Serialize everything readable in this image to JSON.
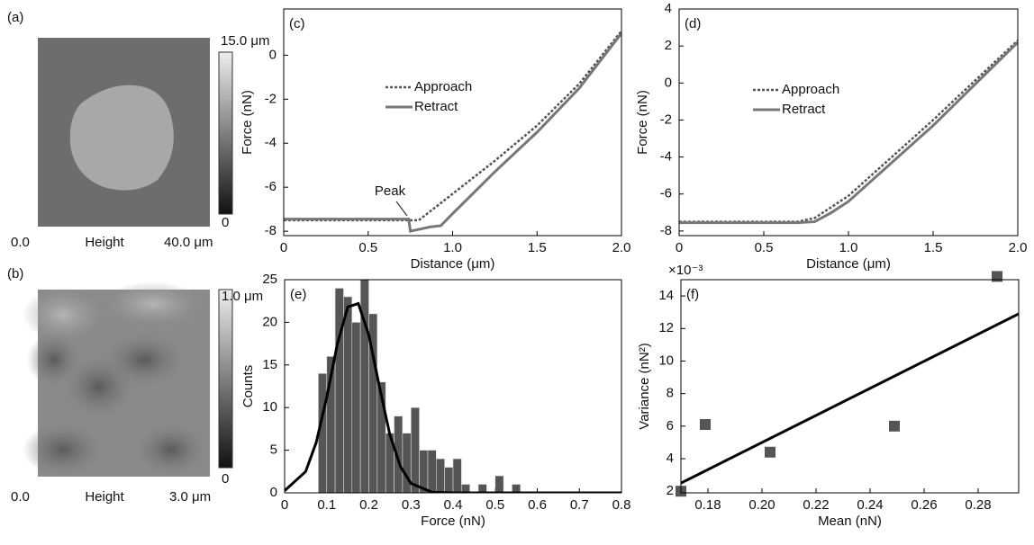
{
  "images": [
    {
      "label": "(a)",
      "colorbar_top": "15.0 μm",
      "colorbar_bottom": "0",
      "x_start": "0.0",
      "caption": "Height",
      "x_end": "40.0 μm"
    },
    {
      "label": "(b)",
      "colorbar_top": "1.0 μm",
      "colorbar_bottom": "0",
      "x_start": "0.0",
      "caption": "Height",
      "x_end": "3.0 μm"
    }
  ],
  "chart_data": [
    {
      "type": "line",
      "label": "(c)",
      "xlabel": "Distance (μm)",
      "ylabel": "Force (nN)",
      "annotation": "Peak",
      "xlim": [
        0,
        2
      ],
      "ylim": [
        -8.2,
        2.1
      ],
      "xticks": [
        0,
        0.5,
        {
          "value": 1,
          "label": "1.0"
        },
        1.5,
        {
          "value": 2,
          "label": "2.0"
        }
      ],
      "yticks": [
        -8,
        -6,
        -4,
        -2,
        0
      ],
      "series": [
        {
          "name": "Approach",
          "color": "#555555",
          "dash": true,
          "x": [
            0,
            0.8,
            1.0,
            1.25,
            1.5,
            1.75,
            2.0
          ],
          "values": [
            -7.5,
            -7.5,
            -6.3,
            -4.8,
            -3.2,
            -1.3,
            1.1
          ]
        },
        {
          "name": "Retract",
          "color": "#777777",
          "dash": false,
          "x": [
            0,
            0.74,
            0.75,
            0.87,
            0.93,
            1.0,
            1.25,
            1.5,
            1.75,
            2.0
          ],
          "values": [
            -7.45,
            -7.45,
            -8.0,
            -7.8,
            -7.75,
            -7.2,
            -5.3,
            -3.5,
            -1.5,
            1.0
          ]
        }
      ]
    },
    {
      "type": "line",
      "label": "(d)",
      "xlabel": "Distance (μm)",
      "ylabel": "Force (nN)",
      "xlim": [
        0,
        2
      ],
      "ylim": [
        -8.25,
        4
      ],
      "xticks": [
        0,
        0.5,
        {
          "value": 1,
          "label": "1.0"
        },
        1.5,
        {
          "value": 2,
          "label": "2.0"
        }
      ],
      "yticks": [
        -8,
        -6,
        -4,
        -2,
        0,
        2,
        4
      ],
      "series": [
        {
          "name": "Approach",
          "color": "#555555",
          "dash": true,
          "x": [
            0,
            0.7,
            0.8,
            1.0,
            1.5,
            2.0
          ],
          "values": [
            -7.5,
            -7.5,
            -7.3,
            -6.1,
            -2.0,
            2.3
          ]
        },
        {
          "name": "Retract",
          "color": "#777777",
          "dash": false,
          "x": [
            0,
            0.7,
            0.8,
            0.9,
            1.0,
            1.5,
            2.0
          ],
          "values": [
            -7.55,
            -7.55,
            -7.5,
            -7.0,
            -6.4,
            -2.3,
            2.2
          ]
        }
      ]
    },
    {
      "type": "histogram",
      "label": "(e)",
      "xlabel": "Force (nN)",
      "ylabel": "Counts",
      "color": "#555555",
      "xlim": [
        0,
        0.8
      ],
      "ylim": [
        0,
        25
      ],
      "xticks": [
        0,
        0.1,
        0.2,
        0.3,
        0.4,
        0.5,
        0.6,
        0.7,
        0.8
      ],
      "yticks": [
        0,
        5,
        10,
        15,
        20,
        25
      ],
      "bins": [
        0.08,
        0.1,
        0.12,
        0.14,
        0.16,
        0.18,
        0.2,
        0.22,
        0.24,
        0.26,
        0.28,
        0.3,
        0.32,
        0.34,
        0.36,
        0.38,
        0.4,
        0.42,
        0.44,
        0.46,
        0.48,
        0.5,
        0.52,
        0.54,
        0.56
      ],
      "values": [
        14,
        16,
        24,
        23,
        20,
        25,
        21,
        13,
        7,
        9,
        7,
        10,
        5,
        5,
        4,
        3,
        4,
        1,
        0,
        1,
        0,
        2,
        0,
        1
      ],
      "fit": {
        "color": "#000000",
        "x": [
          0,
          0.05,
          0.075,
          0.1,
          0.125,
          0.15,
          0.175,
          0.2,
          0.225,
          0.25,
          0.275,
          0.3,
          0.35,
          0.4,
          0.8
        ],
        "values": [
          0.25,
          2.5,
          5.9,
          11.2,
          17.4,
          21.8,
          22.2,
          18.5,
          12.5,
          6.8,
          3.1,
          1.1,
          0.08,
          0,
          0
        ]
      }
    },
    {
      "type": "scatter",
      "label": "(f)",
      "xlabel": "Mean (nN)",
      "ylabel": "Variance (nN²)",
      "y_scale_label": "×10⁻³",
      "color": "#555555",
      "xlim": [
        0.17,
        0.295
      ],
      "ylim": [
        1.9,
        15
      ],
      "xticks": [
        0.18,
        {
          "value": 0.2,
          "label": "0.20"
        },
        0.22,
        0.24,
        0.26,
        0.28
      ],
      "yticks": [
        2,
        4,
        6,
        8,
        10,
        12,
        14
      ],
      "x": [
        0.17,
        0.179,
        0.203,
        0.249,
        0.287
      ],
      "values": [
        2.0,
        6.1,
        4.4,
        6.0,
        15.2
      ],
      "fit": {
        "color": "#000000",
        "x": [
          0.17,
          0.295
        ],
        "values": [
          2.5,
          12.9
        ]
      }
    }
  ]
}
